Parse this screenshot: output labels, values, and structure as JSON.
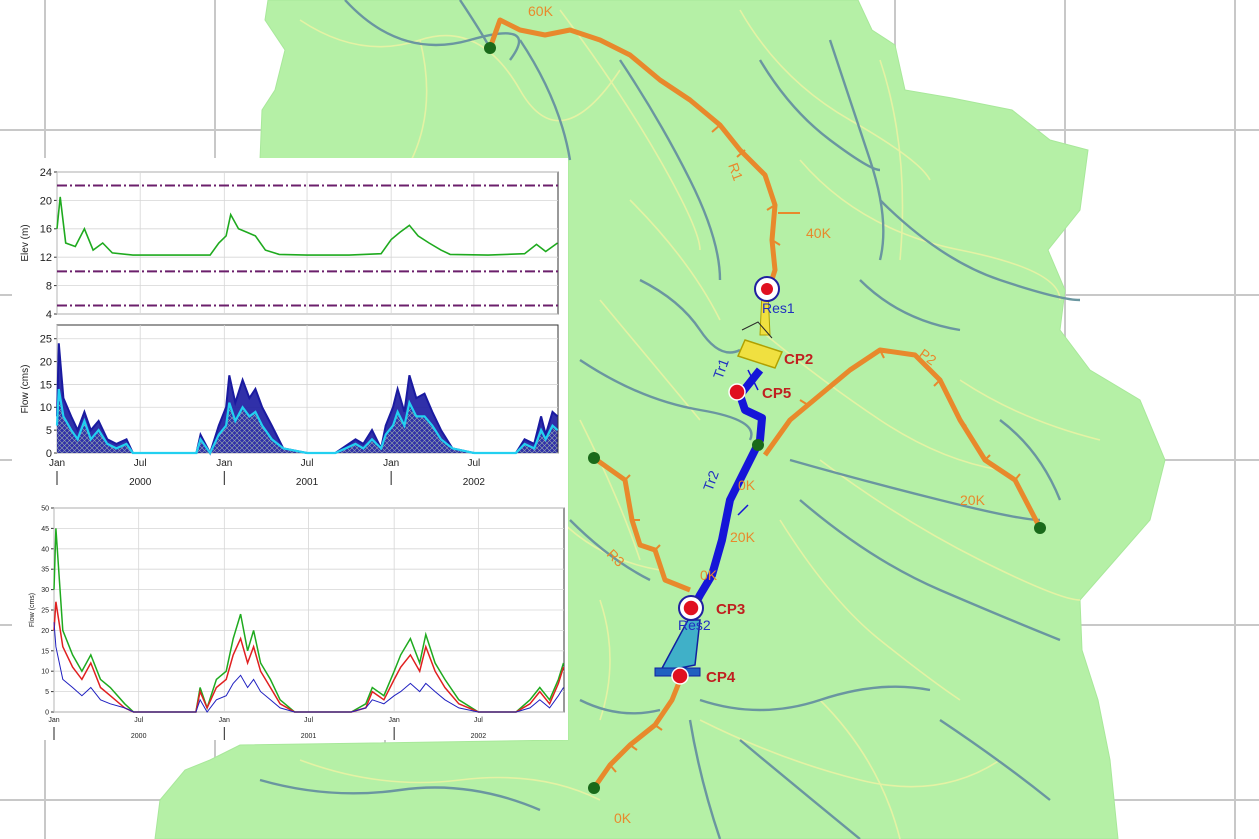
{
  "map": {
    "colors": {
      "background": "#ffffff",
      "grid": "#c8c8c8",
      "basin": "#b5f0a6",
      "subbasin_edge": "#e4f2a4",
      "stream": "#6a96a0",
      "reach": "#e8892c",
      "reach_label": "#e8892c",
      "diversion": "#1515d8",
      "reservoir": "#f0e040",
      "reservoir2": "#40b0c8",
      "control_point": "#e01020",
      "control_label": "#c02020",
      "node": "#1a6a1a"
    },
    "reaches": [
      {
        "id": "reach-r1",
        "label": "R1"
      },
      {
        "id": "reach-r2",
        "label": "P2"
      },
      {
        "id": "reach-r3",
        "label": "R3"
      },
      {
        "id": "reach-lower"
      }
    ],
    "stations": [
      "60K",
      "40K",
      "0K",
      "20K",
      "20K",
      "0K",
      "0K"
    ],
    "diversion_labels": [
      "Tr1",
      "Tr2"
    ],
    "reservoir_labels": [
      "Res1",
      "Res2"
    ],
    "control_points": [
      "CP2",
      "CP5",
      "CP3",
      "CP4"
    ]
  },
  "chart_data": [
    {
      "type": "line",
      "title": "",
      "ylabel": "Elev (m)",
      "ylim": [
        4,
        24
      ],
      "yticks": [
        "24",
        "20",
        "16",
        "12",
        "8",
        "4"
      ],
      "grid": true,
      "series": [
        {
          "color": "#1faa1f",
          "x": [
            "2000-01-01",
            "2000-01-08",
            "2000-01-20",
            "2000-02-10",
            "2000-03-01",
            "2000-03-20",
            "2000-04-10",
            "2000-05-01",
            "2000-06-15",
            "2000-09-01",
            "2000-12-01",
            "2000-12-20",
            "2001-01-05",
            "2001-01-15",
            "2001-02-01",
            "2001-02-20",
            "2001-03-10",
            "2001-04-01",
            "2001-05-01",
            "2001-07-01",
            "2001-10-01",
            "2001-12-10",
            "2002-01-01",
            "2002-01-20",
            "2002-02-10",
            "2002-03-01",
            "2002-03-25",
            "2002-04-20",
            "2002-05-10",
            "2002-08-01",
            "2002-10-20",
            "2002-11-15",
            "2002-12-05",
            "2002-12-31"
          ],
          "y": [
            16,
            20.5,
            14,
            13.5,
            16,
            13,
            14,
            12.6,
            12.3,
            12.3,
            12.3,
            14,
            15,
            18,
            16,
            15.5,
            15,
            13,
            12.4,
            12.3,
            12.3,
            12.5,
            14.5,
            15.5,
            16.5,
            15,
            14,
            13,
            12.4,
            12.3,
            12.5,
            13.8,
            12.8,
            14
          ]
        }
      ],
      "thresholds": [
        {
          "value": 22.1,
          "color": "#6b1f6b"
        },
        {
          "value": 10,
          "color": "#6b1f6b"
        },
        {
          "value": 5.2,
          "color": "#6b1f6b"
        }
      ]
    },
    {
      "type": "area",
      "title": "",
      "ylabel": "Flow (cms)",
      "ylim": [
        0,
        28
      ],
      "yticks": [
        "25",
        "20",
        "15",
        "10",
        "5",
        "0"
      ],
      "grid": true,
      "xtick_labels": [
        "Jan",
        "Jul",
        "Jan",
        "Jul",
        "Jan",
        "Jul"
      ],
      "year_labels": [
        "2000",
        "2001",
        "2002"
      ],
      "series": [
        {
          "color": "#1a1aa0",
          "x": [
            "2000-01-01",
            "2000-01-05",
            "2000-01-15",
            "2000-02-01",
            "2000-02-15",
            "2000-03-01",
            "2000-03-15",
            "2000-04-01",
            "2000-04-20",
            "2000-05-10",
            "2000-06-01",
            "2000-06-15",
            "2000-09-01",
            "2000-11-01",
            "2000-11-10",
            "2000-12-01",
            "2000-12-20",
            "2001-01-05",
            "2001-01-12",
            "2001-01-25",
            "2001-02-10",
            "2001-02-25",
            "2001-03-10",
            "2001-03-25",
            "2001-04-15",
            "2001-05-10",
            "2001-07-01",
            "2001-09-01",
            "2001-10-15",
            "2001-11-01",
            "2001-11-20",
            "2001-12-10",
            "2001-12-20",
            "2002-01-05",
            "2002-01-15",
            "2002-01-30",
            "2002-02-10",
            "2002-02-25",
            "2002-03-15",
            "2002-04-01",
            "2002-04-20",
            "2002-05-15",
            "2002-07-01",
            "2002-10-01",
            "2002-10-20",
            "2002-11-10",
            "2002-11-25",
            "2002-12-05",
            "2002-12-20",
            "2002-12-31"
          ],
          "y": [
            8,
            24,
            12,
            8,
            5,
            9,
            5,
            7,
            3,
            2,
            3,
            0,
            0,
            0,
            4,
            0,
            6,
            10,
            17,
            11,
            16,
            12,
            14,
            10,
            6,
            1,
            0,
            0,
            3,
            2,
            5,
            1,
            6,
            10,
            14,
            9,
            17,
            12,
            13,
            9,
            5,
            1,
            0,
            0,
            3,
            2,
            8,
            4,
            9,
            8
          ]
        },
        {
          "color": "#22d0f0",
          "x": [
            "2000-01-01",
            "2000-01-05",
            "2000-01-15",
            "2000-02-01",
            "2000-02-15",
            "2000-03-01",
            "2000-03-15",
            "2000-04-01",
            "2000-04-20",
            "2000-05-10",
            "2000-06-01",
            "2000-06-15",
            "2000-09-01",
            "2000-11-01",
            "2000-11-10",
            "2000-12-01",
            "2000-12-20",
            "2001-01-05",
            "2001-01-12",
            "2001-01-25",
            "2001-02-10",
            "2001-02-25",
            "2001-03-10",
            "2001-03-25",
            "2001-04-15",
            "2001-05-10",
            "2001-07-01",
            "2001-09-01",
            "2001-10-15",
            "2001-11-01",
            "2001-11-20",
            "2001-12-10",
            "2001-12-20",
            "2002-01-05",
            "2002-01-15",
            "2002-01-30",
            "2002-02-10",
            "2002-02-25",
            "2002-03-15",
            "2002-04-01",
            "2002-04-20",
            "2002-05-15",
            "2002-07-01",
            "2002-10-01",
            "2002-10-20",
            "2002-11-10",
            "2002-11-25",
            "2002-12-05",
            "2002-12-20",
            "2002-12-31"
          ],
          "y": [
            6,
            14,
            8,
            5,
            3,
            7,
            3,
            5,
            2,
            1,
            2,
            0,
            0,
            0,
            3,
            0,
            4,
            6,
            11,
            7,
            10,
            8,
            9,
            6,
            3,
            1,
            0,
            0,
            2,
            1,
            3,
            1,
            4,
            6,
            9,
            6,
            11,
            8,
            8,
            6,
            3,
            1,
            0,
            0,
            2,
            1,
            5,
            3,
            6,
            5
          ]
        }
      ]
    },
    {
      "type": "line",
      "title": "",
      "ylabel": "Flow (cms)",
      "ylim": [
        0,
        50
      ],
      "yticks": [
        "50",
        "45",
        "40",
        "35",
        "30",
        "25",
        "20",
        "15",
        "10",
        "5",
        "0"
      ],
      "grid": true,
      "xtick_labels": [
        "Jan",
        "Jul",
        "Jan",
        "Jul",
        "Jan",
        "Jul"
      ],
      "year_labels": [
        "2000",
        "2001",
        "2002"
      ],
      "series": [
        {
          "color": "#1faa1f",
          "x": [
            "2000-01-01",
            "2000-01-05",
            "2000-01-20",
            "2000-02-10",
            "2000-03-01",
            "2000-03-20",
            "2000-04-10",
            "2000-05-01",
            "2000-06-01",
            "2000-06-20",
            "2000-11-01",
            "2000-11-10",
            "2000-11-25",
            "2000-12-15",
            "2001-01-05",
            "2001-01-20",
            "2001-02-05",
            "2001-02-20",
            "2001-03-05",
            "2001-03-20",
            "2001-04-10",
            "2001-05-01",
            "2001-06-01",
            "2001-10-01",
            "2001-11-01",
            "2001-11-15",
            "2001-12-10",
            "2002-01-01",
            "2002-01-15",
            "2002-02-05",
            "2002-02-25",
            "2002-03-10",
            "2002-03-30",
            "2002-04-20",
            "2002-05-20",
            "2002-07-01",
            "2002-09-20",
            "2002-10-20",
            "2002-11-10",
            "2002-12-01",
            "2002-12-20",
            "2002-12-31"
          ],
          "y": [
            30,
            45,
            20,
            14,
            10,
            14,
            8,
            6,
            2,
            0,
            0,
            6,
            1,
            8,
            10,
            18,
            24,
            15,
            20,
            12,
            8,
            3,
            0,
            0,
            2,
            6,
            4,
            10,
            14,
            18,
            12,
            19,
            12,
            8,
            3,
            0,
            0,
            3,
            6,
            3,
            8,
            12
          ]
        },
        {
          "color": "#e02020",
          "x": [
            "2000-01-01",
            "2000-01-05",
            "2000-01-20",
            "2000-02-10",
            "2000-03-01",
            "2000-03-20",
            "2000-04-10",
            "2000-05-01",
            "2000-06-01",
            "2000-06-20",
            "2000-11-01",
            "2000-11-10",
            "2000-11-25",
            "2000-12-15",
            "2001-01-05",
            "2001-01-20",
            "2001-02-05",
            "2001-02-20",
            "2001-03-05",
            "2001-03-20",
            "2001-04-10",
            "2001-05-01",
            "2001-06-01",
            "2001-10-01",
            "2001-11-01",
            "2001-11-15",
            "2001-12-10",
            "2002-01-01",
            "2002-01-15",
            "2002-02-05",
            "2002-02-25",
            "2002-03-10",
            "2002-03-30",
            "2002-04-20",
            "2002-05-20",
            "2002-07-01",
            "2002-09-20",
            "2002-10-20",
            "2002-11-10",
            "2002-12-01",
            "2002-12-20",
            "2002-12-31"
          ],
          "y": [
            20,
            27,
            16,
            11,
            8,
            12,
            6,
            4,
            1,
            0,
            0,
            5,
            1,
            6,
            8,
            14,
            18,
            12,
            16,
            10,
            6,
            2,
            0,
            0,
            1,
            5,
            3,
            8,
            11,
            14,
            10,
            16,
            10,
            6,
            2,
            0,
            0,
            2,
            5,
            2,
            7,
            11
          ]
        },
        {
          "color": "#2020c0",
          "x": [
            "2000-01-01",
            "2000-01-05",
            "2000-01-20",
            "2000-02-10",
            "2000-03-01",
            "2000-03-20",
            "2000-04-10",
            "2000-05-01",
            "2000-06-01",
            "2000-06-20",
            "2000-11-01",
            "2000-11-10",
            "2000-11-25",
            "2000-12-15",
            "2001-01-05",
            "2001-01-20",
            "2001-02-05",
            "2001-02-20",
            "2001-03-05",
            "2001-03-20",
            "2001-04-10",
            "2001-05-01",
            "2001-06-01",
            "2001-10-01",
            "2001-11-01",
            "2001-11-15",
            "2001-12-10",
            "2002-01-01",
            "2002-01-15",
            "2002-02-05",
            "2002-02-25",
            "2002-03-10",
            "2002-03-30",
            "2002-04-20",
            "2002-05-20",
            "2002-07-01",
            "2002-09-20",
            "2002-10-20",
            "2002-11-10",
            "2002-12-01",
            "2002-12-20",
            "2002-12-31"
          ],
          "y": [
            22,
            16,
            8,
            6,
            4,
            6,
            3,
            2,
            1,
            0,
            0,
            3,
            0,
            3,
            4,
            7,
            9,
            6,
            8,
            5,
            3,
            1,
            0,
            0,
            1,
            3,
            2,
            4,
            5,
            7,
            5,
            7,
            5,
            3,
            1,
            0,
            0,
            1,
            3,
            1,
            4,
            6
          ]
        }
      ]
    }
  ]
}
